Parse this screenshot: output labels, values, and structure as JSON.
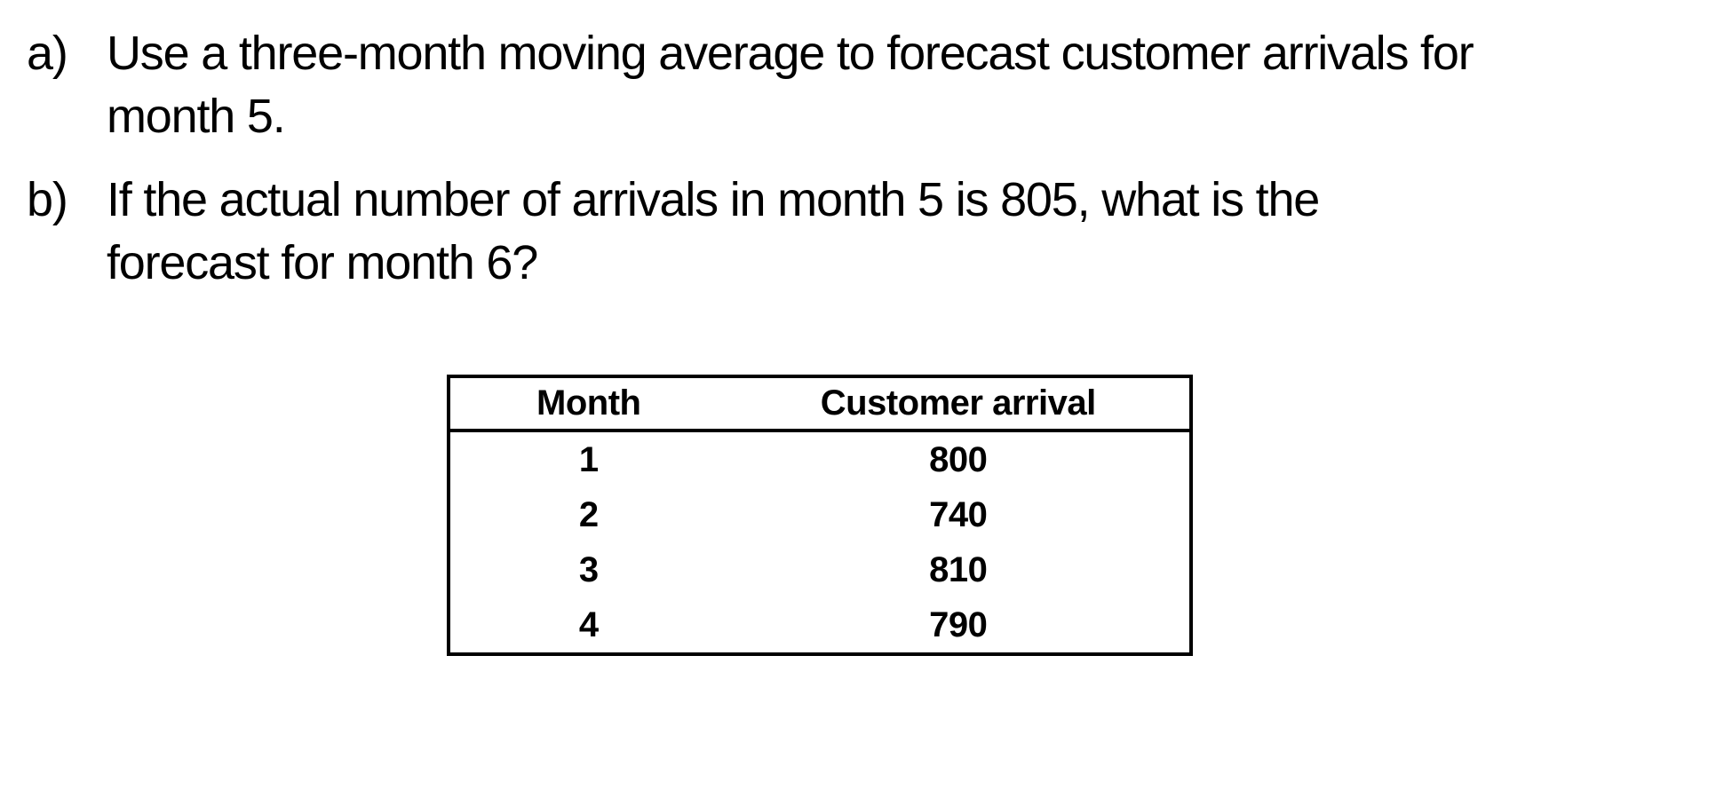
{
  "questions": [
    {
      "marker": "a)",
      "line1": "Use a three-month moving average to forecast customer arrivals for",
      "line2": "month 5."
    },
    {
      "marker": "b)",
      "line1": "If the actual number of arrivals in month 5 is 805, what is the",
      "line2": "forecast for month 6?"
    }
  ],
  "table": {
    "headers": [
      "Month",
      "Customer arrival"
    ],
    "rows": [
      [
        "1",
        "800"
      ],
      [
        "2",
        "740"
      ],
      [
        "3",
        "810"
      ],
      [
        "4",
        "790"
      ]
    ]
  },
  "chart_data": {
    "type": "table",
    "columns": [
      "Month",
      "Customer arrival"
    ],
    "rows": [
      [
        1,
        800
      ],
      [
        2,
        740
      ],
      [
        3,
        810
      ],
      [
        4,
        790
      ]
    ]
  },
  "colors": {
    "background": "#ffffff",
    "text": "#000000",
    "table_border": "#000000"
  }
}
